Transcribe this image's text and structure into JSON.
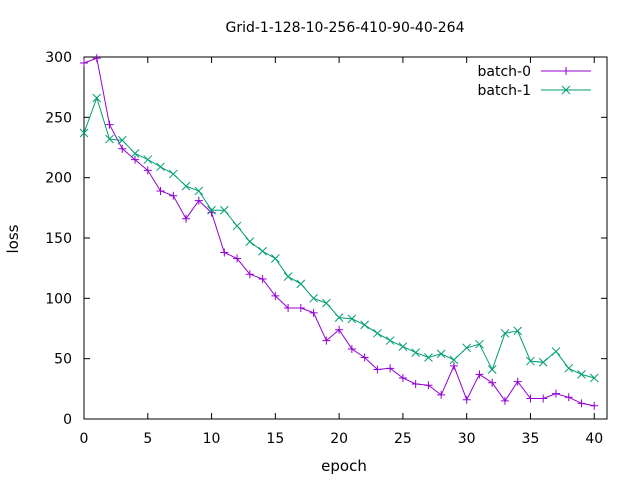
{
  "chart_data": {
    "type": "line",
    "title": "Grid-1-128-10-256-410-90-40-264",
    "xlabel": "epoch",
    "ylabel": "loss",
    "xlim": [
      0,
      41
    ],
    "ylim": [
      0,
      300
    ],
    "xticks": [
      0,
      5,
      10,
      15,
      20,
      25,
      30,
      35,
      40
    ],
    "yticks": [
      0,
      50,
      100,
      150,
      200,
      250,
      300
    ],
    "grid": false,
    "legend_position": "top-right",
    "x": [
      0,
      1,
      2,
      3,
      4,
      5,
      6,
      7,
      8,
      9,
      10,
      11,
      12,
      13,
      14,
      15,
      16,
      17,
      18,
      19,
      20,
      21,
      22,
      23,
      24,
      25,
      26,
      27,
      28,
      29,
      30,
      31,
      32,
      33,
      34,
      35,
      36,
      37,
      38,
      39,
      40
    ],
    "series": [
      {
        "name": "batch-0",
        "color": "#9400d3",
        "marker": "plus",
        "values": [
          295,
          299,
          244,
          224,
          215,
          206,
          189,
          185,
          166,
          181,
          171,
          138,
          133,
          120,
          116,
          102,
          92,
          92,
          88,
          65,
          74,
          58,
          51,
          41,
          42,
          34,
          29,
          28,
          20,
          44,
          16,
          37,
          30,
          15,
          31,
          17,
          17,
          21,
          18,
          13,
          11
        ]
      },
      {
        "name": "batch-1",
        "color": "#009e73",
        "marker": "cross",
        "values": [
          237,
          266,
          232,
          231,
          220,
          215,
          209,
          203,
          193,
          189,
          173,
          173,
          160,
          147,
          139,
          133,
          118,
          112,
          100,
          96,
          84,
          83,
          78,
          71,
          65,
          60,
          55,
          51,
          54,
          49,
          59,
          62,
          41,
          71,
          73,
          48,
          47,
          56,
          42,
          37,
          34
        ]
      }
    ]
  }
}
